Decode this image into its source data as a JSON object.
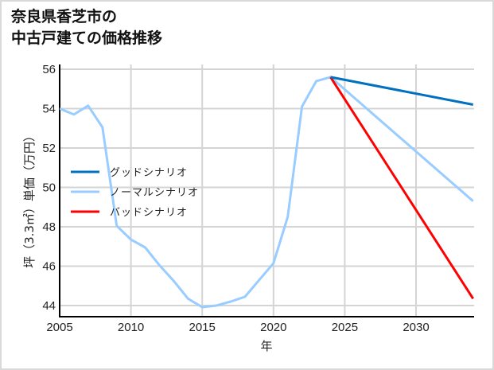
{
  "title_line1": "奈良県香芝市の",
  "title_line2": "中古戸建ての価格推移",
  "chart_data": {
    "type": "line",
    "title": "奈良県香芝市の中古戸建ての価格推移",
    "xlabel": "年",
    "ylabel": "坪（3.3㎡）単価（万円）",
    "xlim": [
      2005,
      2034
    ],
    "ylim": [
      43.4,
      56.2
    ],
    "x_ticks": [
      2005,
      2010,
      2015,
      2020,
      2025,
      2030
    ],
    "y_ticks": [
      44,
      46,
      48,
      50,
      52,
      54,
      56
    ],
    "grid": true,
    "legend_position": "center-left",
    "series": [
      {
        "name": "グッドシナリオ",
        "color": "#0070c0",
        "x": [
          2024,
          2034
        ],
        "values": [
          55.6,
          54.2
        ]
      },
      {
        "name": "ノーマルシナリオ",
        "color": "#99ccff",
        "x": [
          2005,
          2006,
          2007,
          2008,
          2009,
          2010,
          2011,
          2012,
          2013,
          2014,
          2015,
          2016,
          2017,
          2018,
          2019,
          2020,
          2021,
          2022,
          2023,
          2024,
          2034
        ],
        "values": [
          54.0,
          53.7,
          54.15,
          53.05,
          48.05,
          47.35,
          46.95,
          46.05,
          45.25,
          44.35,
          43.92,
          44.0,
          44.2,
          44.45,
          45.3,
          46.15,
          48.5,
          54.1,
          55.4,
          55.6,
          49.3
        ]
      },
      {
        "name": "バッドシナリオ",
        "color": "#ff0000",
        "x": [
          2024,
          2034
        ],
        "values": [
          55.6,
          44.35
        ]
      }
    ]
  }
}
